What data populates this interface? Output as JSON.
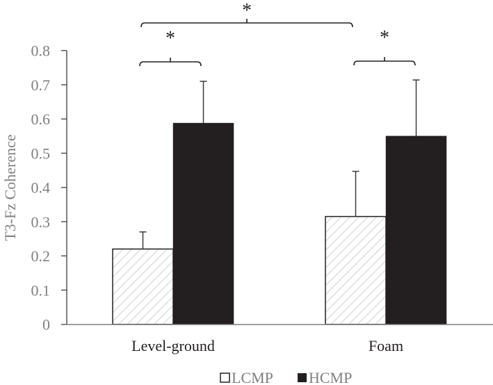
{
  "chart_data": {
    "type": "bar",
    "title": "",
    "xlabel": "",
    "ylabel": "T3-Fz Coherence",
    "ylim": [
      0,
      0.8
    ],
    "yticks": [
      "0",
      "0.1",
      "0.2",
      "0.3",
      "0.4",
      "0.5",
      "0.6",
      "0.7",
      "0.8"
    ],
    "categories": [
      "Level-ground",
      "Foam"
    ],
    "series": [
      {
        "name": "LCMP",
        "values": [
          0.22,
          0.315
        ],
        "errors": [
          0.05,
          0.132
        ],
        "fill": "hatched-white"
      },
      {
        "name": "HCMP",
        "values": [
          0.588,
          0.55
        ],
        "errors": [
          0.122,
          0.164
        ],
        "fill": "#231f20"
      }
    ],
    "legend": {
      "placement": "bottom-center",
      "entries": [
        "LCMP",
        "HCMP"
      ]
    },
    "grid": false,
    "significance": [
      {
        "label": "*",
        "between": "Level-ground LCMP vs HCMP"
      },
      {
        "label": "*",
        "between": "Foam LCMP vs HCMP"
      },
      {
        "label": "*",
        "between": "Level-ground vs Foam"
      }
    ]
  }
}
